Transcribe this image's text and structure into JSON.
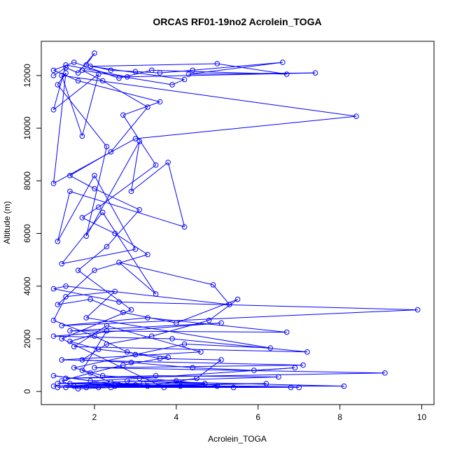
{
  "chart_data": {
    "type": "line",
    "title": "ORCAS RF01-19no2 Acrolein_TOGA",
    "xlabel": "Acrolein_TOGA",
    "ylabel": "Altitude (m)",
    "xlim": [
      0.7,
      10.3
    ],
    "ylim": [
      -500,
      13300
    ],
    "xticks": [
      2,
      4,
      6,
      8,
      10
    ],
    "yticks": [
      0,
      2000,
      4000,
      6000,
      8000,
      10000,
      12000
    ],
    "grid": false,
    "legend": "none",
    "series": [
      {
        "color": "#0000ff",
        "marker": "open-circle",
        "points": [
          [
            1.0,
            12000
          ],
          [
            1.3,
            12300
          ],
          [
            1.6,
            12100
          ],
          [
            2.0,
            12850
          ],
          [
            1.8,
            12400
          ],
          [
            2.4,
            12200
          ],
          [
            3.0,
            12150
          ],
          [
            3.6,
            12100
          ],
          [
            4.4,
            12200
          ],
          [
            6.6,
            12500
          ],
          [
            4.3,
            12050
          ],
          [
            7.4,
            12100
          ],
          [
            2.8,
            11950
          ],
          [
            1.3,
            12400
          ],
          [
            1.0,
            10700
          ],
          [
            2.1,
            12050
          ],
          [
            1.7,
            9700
          ],
          [
            1.2,
            12000
          ],
          [
            8.4,
            10450
          ],
          [
            3.0,
            9600
          ],
          [
            1.0,
            7900
          ],
          [
            1.3,
            12100
          ],
          [
            1.1,
            11650
          ],
          [
            2.3,
            9300
          ],
          [
            1.8,
            5900
          ],
          [
            3.1,
            9500
          ],
          [
            2.9,
            7600
          ],
          [
            3.8,
            8700
          ],
          [
            4.2,
            6250
          ],
          [
            1.4,
            7600
          ],
          [
            1.1,
            5700
          ],
          [
            2.0,
            8200
          ],
          [
            3.0,
            5400
          ],
          [
            1.2,
            4850
          ],
          [
            2.2,
            6800
          ],
          [
            3.5,
            3700
          ],
          [
            2.6,
            4900
          ],
          [
            4.9,
            4050
          ],
          [
            5.3,
            3300
          ],
          [
            1.3,
            4000
          ],
          [
            1.0,
            3900
          ],
          [
            2.6,
            3400
          ],
          [
            9.9,
            3100
          ],
          [
            1.2,
            2500
          ],
          [
            3.3,
            2800
          ],
          [
            6.7,
            2250
          ],
          [
            1.4,
            2300
          ],
          [
            5.1,
            2600
          ],
          [
            1.0,
            2100
          ],
          [
            3.9,
            2000
          ],
          [
            7.2,
            1500
          ],
          [
            1.5,
            1700
          ],
          [
            2.3,
            2500
          ],
          [
            4.6,
            1500
          ],
          [
            1.2,
            1200
          ],
          [
            7.1,
            1000
          ],
          [
            2.0,
            900
          ],
          [
            9.1,
            700
          ],
          [
            1.3,
            500
          ],
          [
            3.5,
            600
          ],
          [
            6.5,
            550
          ],
          [
            1.1,
            300
          ],
          [
            4.7,
            300
          ],
          [
            2.8,
            400
          ],
          [
            8.1,
            200
          ],
          [
            1.5,
            200
          ],
          [
            6.2,
            300
          ],
          [
            1.8,
            150
          ],
          [
            5.0,
            200
          ],
          [
            1.3,
            150
          ],
          [
            7.0,
            150
          ],
          [
            2.5,
            200
          ],
          [
            3.2,
            300
          ],
          [
            1.0,
            200
          ],
          [
            4.1,
            200
          ],
          [
            2.1,
            150
          ],
          [
            6.8,
            150
          ],
          [
            1.4,
            300
          ],
          [
            3.7,
            150
          ],
          [
            1.2,
            2000
          ],
          [
            2.9,
            3100
          ],
          [
            1.6,
            4600
          ],
          [
            2.3,
            5500
          ],
          [
            3.1,
            6900
          ],
          [
            2.0,
            7700
          ],
          [
            1.4,
            8200
          ],
          [
            2.4,
            9100
          ],
          [
            3.3,
            10800
          ],
          [
            2.2,
            11800
          ],
          [
            1.7,
            12200
          ],
          [
            3.9,
            11650
          ],
          [
            4.2,
            11850
          ],
          [
            1.9,
            12350
          ],
          [
            5.0,
            12450
          ],
          [
            6.7,
            12050
          ],
          [
            3.4,
            12200
          ],
          [
            2.6,
            11900
          ],
          [
            1.5,
            12500
          ],
          [
            1.0,
            12200
          ],
          [
            1.6,
            11800
          ],
          [
            3.6,
            11000
          ],
          [
            2.7,
            10500
          ],
          [
            3.5,
            8600
          ],
          [
            2.1,
            7000
          ],
          [
            1.7,
            6600
          ],
          [
            2.5,
            6000
          ],
          [
            3.3,
            5200
          ],
          [
            2.0,
            4600
          ],
          [
            1.1,
            3300
          ],
          [
            1.9,
            3500
          ],
          [
            2.7,
            3000
          ],
          [
            4.0,
            2600
          ],
          [
            5.5,
            3500
          ],
          [
            4.8,
            2700
          ],
          [
            3.4,
            2100
          ],
          [
            2.3,
            1800
          ],
          [
            1.7,
            1200
          ],
          [
            2.9,
            1100
          ],
          [
            4.4,
            900
          ],
          [
            5.9,
            800
          ],
          [
            6.9,
            900
          ],
          [
            3.1,
            500
          ],
          [
            1.9,
            400
          ],
          [
            1.0,
            600
          ],
          [
            2.6,
            250
          ],
          [
            5.4,
            150
          ],
          [
            4.0,
            400
          ],
          [
            2.2,
            600
          ],
          [
            1.5,
            900
          ],
          [
            3.0,
            1400
          ],
          [
            4.2,
            1800
          ],
          [
            6.3,
            1650
          ],
          [
            1.8,
            2800
          ],
          [
            2.5,
            3800
          ],
          [
            1.3,
            3600
          ],
          [
            1.0,
            2700
          ],
          [
            2.0,
            2100
          ],
          [
            2.8,
            1500
          ],
          [
            3.6,
            1250
          ],
          [
            5.1,
            1200
          ],
          [
            4.5,
            500
          ],
          [
            3.3,
            200
          ],
          [
            2.4,
            150
          ],
          [
            1.6,
            100
          ],
          [
            1.2,
            400
          ],
          [
            1.9,
            700
          ],
          [
            2.7,
            1000
          ],
          [
            3.8,
            1300
          ],
          [
            2.1,
            1600
          ],
          [
            1.4,
            1900
          ],
          [
            2.3,
            2300
          ],
          [
            1.7,
            800
          ],
          [
            2.4,
            350
          ],
          [
            3.0,
            250
          ],
          [
            1.1,
            150
          ]
        ]
      }
    ]
  }
}
